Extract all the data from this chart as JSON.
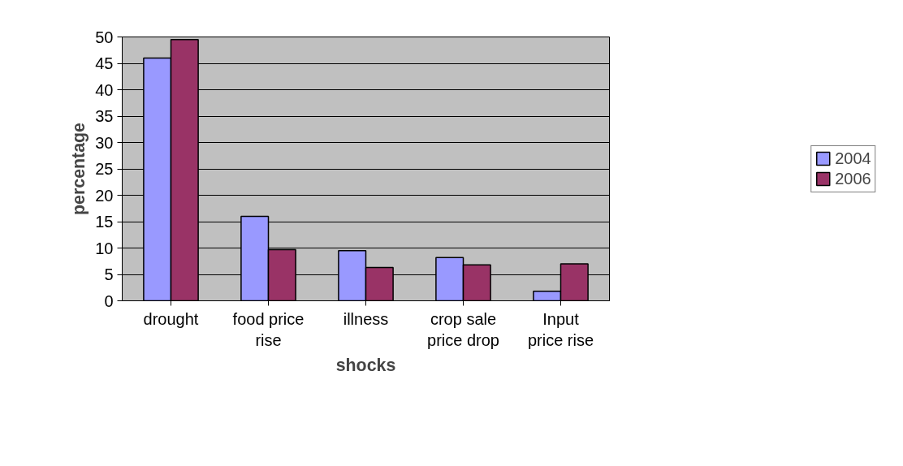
{
  "chart_data": {
    "type": "bar",
    "xlabel": "shocks",
    "ylabel": "percentage",
    "categories": [
      "drought",
      "food price rise",
      "illness",
      "crop sale price drop",
      "Input price rise"
    ],
    "series": [
      {
        "name": "2004",
        "color": "#9999ff",
        "values": [
          46,
          16,
          9.5,
          8.2,
          1.8
        ]
      },
      {
        "name": "2006",
        "color": "#993366",
        "values": [
          49.5,
          9.7,
          6.3,
          6.8,
          7
        ]
      }
    ],
    "ylim": [
      0,
      50
    ],
    "yticks": [
      0,
      5,
      10,
      15,
      20,
      25,
      30,
      35,
      40,
      45,
      50
    ],
    "grid": "y",
    "legend": "right"
  }
}
